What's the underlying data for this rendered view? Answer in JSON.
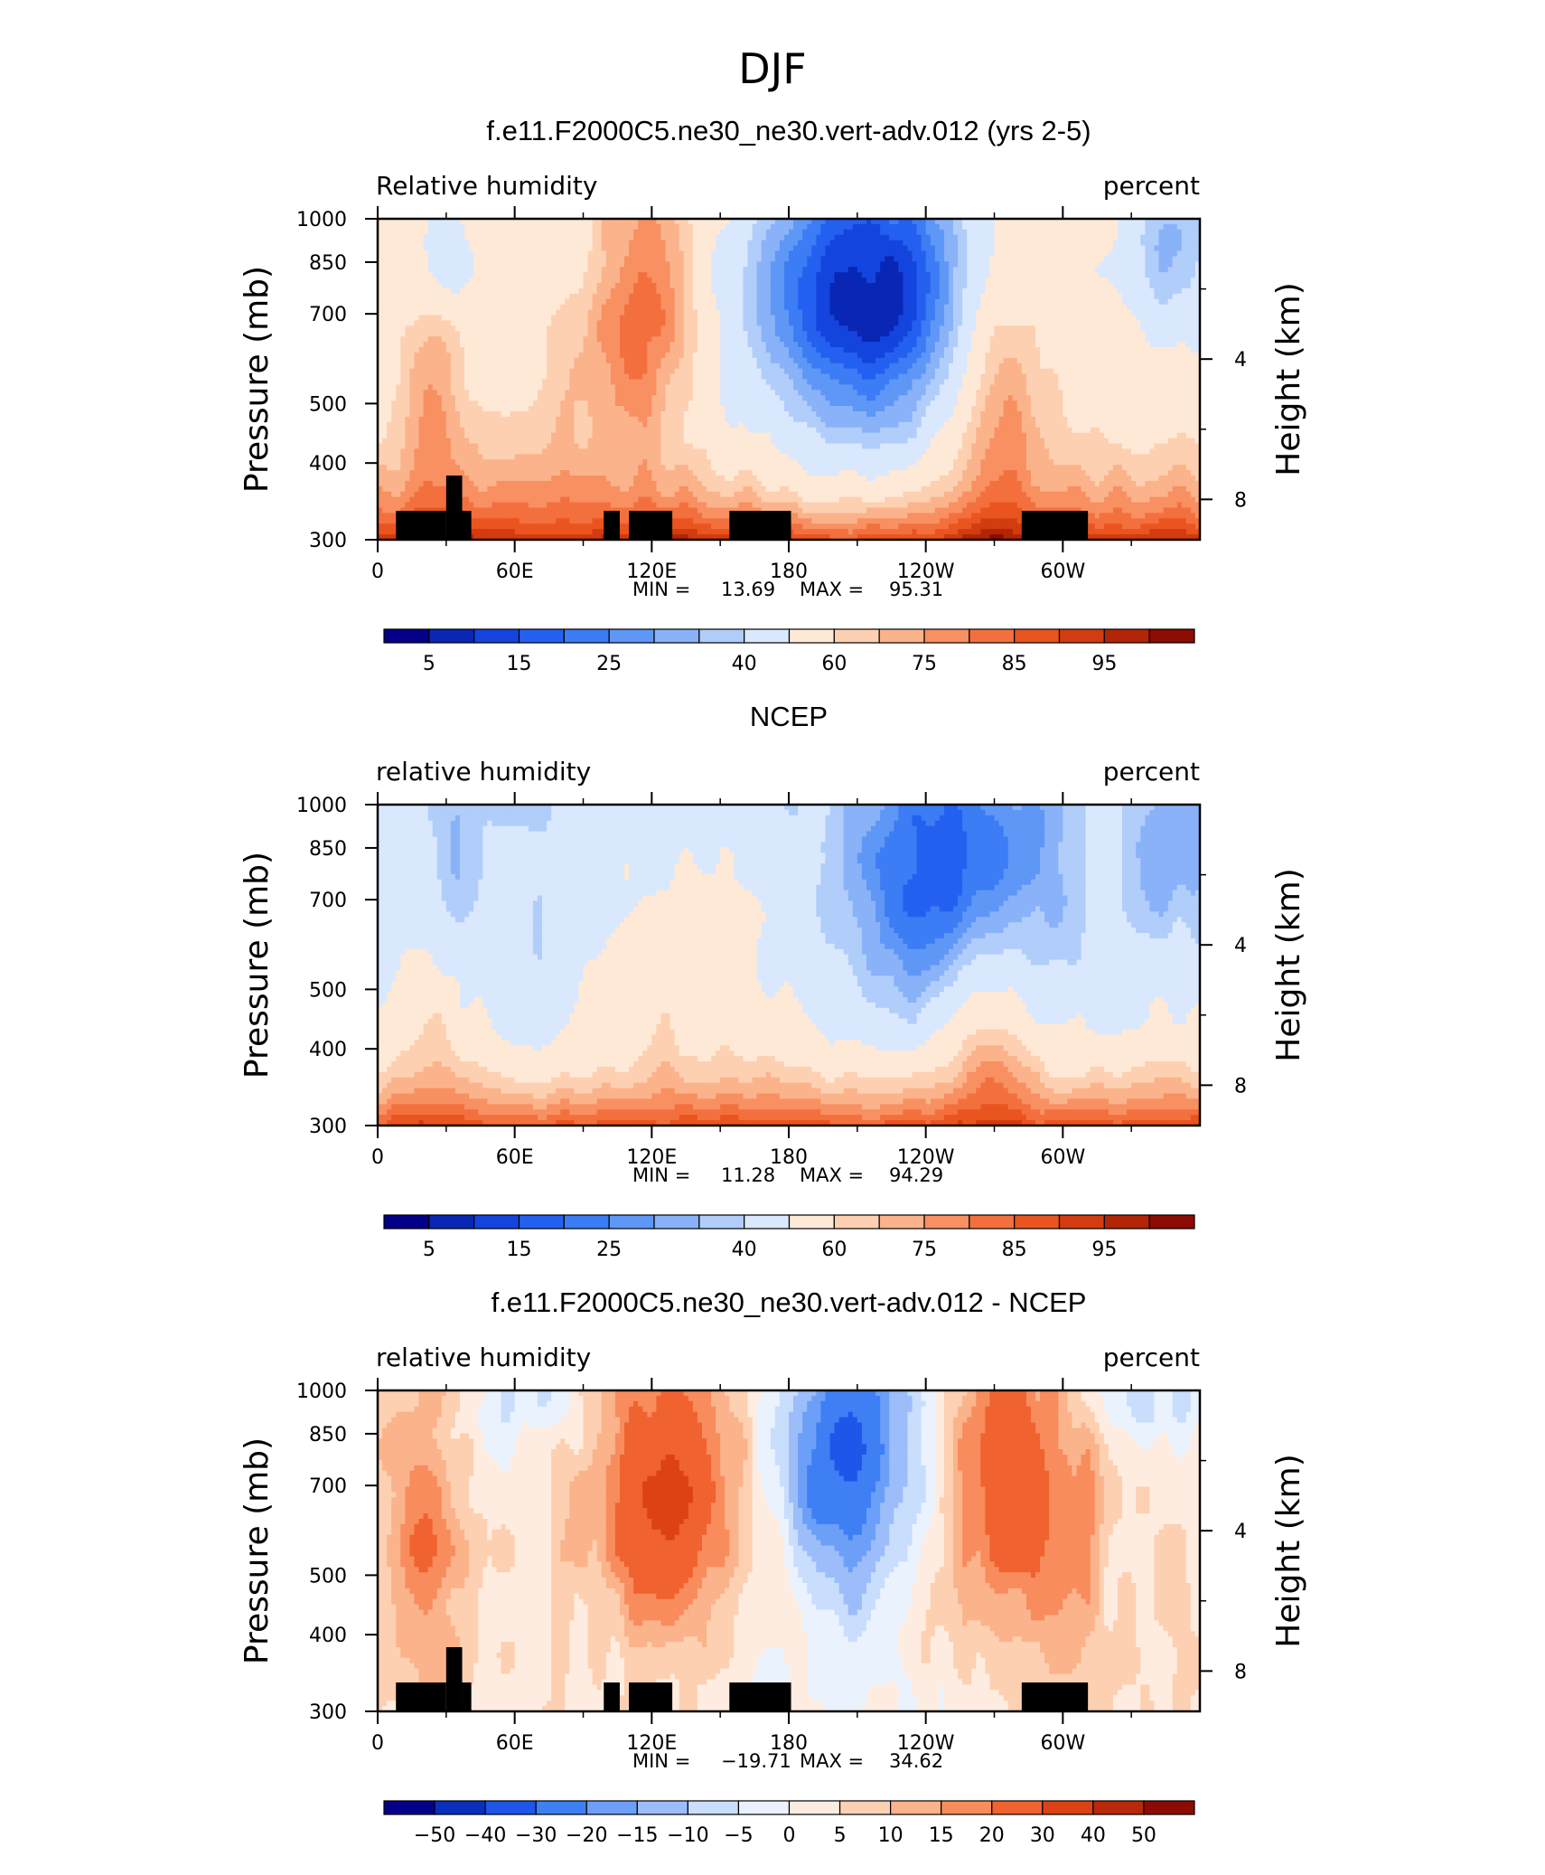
{
  "figure_title": "DJF",
  "colors": {
    "rh_levels": [
      5,
      10,
      15,
      20,
      25,
      30,
      35,
      40,
      50,
      60,
      65,
      70,
      75,
      80,
      85,
      90,
      95
    ],
    "diff_levels": [
      -50,
      -40,
      -30,
      -20,
      -15,
      -10,
      -5,
      0,
      5,
      10,
      15,
      20,
      30,
      40,
      50
    ],
    "palette_rh": [
      "#030087",
      "#0926b4",
      "#1444de",
      "#2460f0",
      "#3c7cf4",
      "#5e97f6",
      "#89b2f8",
      "#b1cdfa",
      "#d9e8fd",
      "#fee9d7",
      "#fdd0b2",
      "#fbb38b",
      "#f89062",
      "#f3703e",
      "#e9541f",
      "#d33b10",
      "#b22507",
      "#8c0c03"
    ],
    "palette_diff": [
      "#030087",
      "#0b2fbd",
      "#1e56ea",
      "#3f7ff4",
      "#6c9ff7",
      "#9cbdf9",
      "#c9ddfc",
      "#eaf2fe",
      "#feece0",
      "#fdd0b2",
      "#fbb38b",
      "#f88c5d",
      "#f0622f",
      "#dc4214",
      "#b8280a",
      "#8c0c03"
    ],
    "land_mask": "#000000"
  },
  "chart_data": [
    {
      "type": "heatmap",
      "title": "f.e11.F2000C5.ne30_ne30.vert-adv.012 (yrs 2-5)",
      "left_string": "Relative  humidity",
      "right_string": "percent",
      "ylabel": "Pressure (mb)",
      "ylabel_right": "Height (km)",
      "x_ticks": [
        "0",
        "60E",
        "120E",
        "180",
        "120W",
        "60W"
      ],
      "y_ticks": [
        "300",
        "400",
        "500",
        "700",
        "850",
        "1000"
      ],
      "right_ticks": [
        "8",
        "4"
      ],
      "xlim": [
        0,
        360
      ],
      "ylim": [
        1000,
        300
      ],
      "min_label": "MIN =",
      "min": "13.69",
      "max_label": "MAX =",
      "max": "95.31",
      "colorbar_labels": [
        "5",
        "15",
        "25",
        "40",
        "60",
        "75",
        "85",
        "95"
      ]
    },
    {
      "type": "heatmap",
      "title": "NCEP",
      "left_string": "relative  humidity",
      "right_string": "percent",
      "ylabel": "Pressure (mb)",
      "ylabel_right": "Height (km)",
      "x_ticks": [
        "0",
        "60E",
        "120E",
        "180",
        "120W",
        "60W"
      ],
      "y_ticks": [
        "300",
        "400",
        "500",
        "700",
        "850",
        "1000"
      ],
      "right_ticks": [
        "8",
        "4"
      ],
      "xlim": [
        0,
        360
      ],
      "ylim": [
        1000,
        300
      ],
      "min_label": "MIN =",
      "min": "11.28",
      "max_label": "MAX =",
      "max": "94.29",
      "colorbar_labels": [
        "5",
        "15",
        "25",
        "40",
        "60",
        "75",
        "85",
        "95"
      ]
    },
    {
      "type": "heatmap",
      "title": "f.e11.F2000C5.ne30_ne30.vert-adv.012 - NCEP",
      "left_string": "relative  humidity",
      "right_string": "percent",
      "ylabel": "Pressure (mb)",
      "ylabel_right": "Height (km)",
      "x_ticks": [
        "0",
        "60E",
        "120E",
        "180",
        "120W",
        "60W"
      ],
      "y_ticks": [
        "300",
        "400",
        "500",
        "700",
        "850",
        "1000"
      ],
      "right_ticks": [
        "8",
        "4"
      ],
      "xlim": [
        0,
        360
      ],
      "ylim": [
        1000,
        300
      ],
      "min_label": "MIN =",
      "min": "−19.71",
      "max_label": "MAX =",
      "max": "34.62",
      "colorbar_labels": [
        "−50",
        "−40",
        "−30",
        "−20",
        "−15",
        "−10",
        "−5",
        "0",
        "5",
        "10",
        "15",
        "20",
        "30",
        "40",
        "50"
      ]
    }
  ]
}
